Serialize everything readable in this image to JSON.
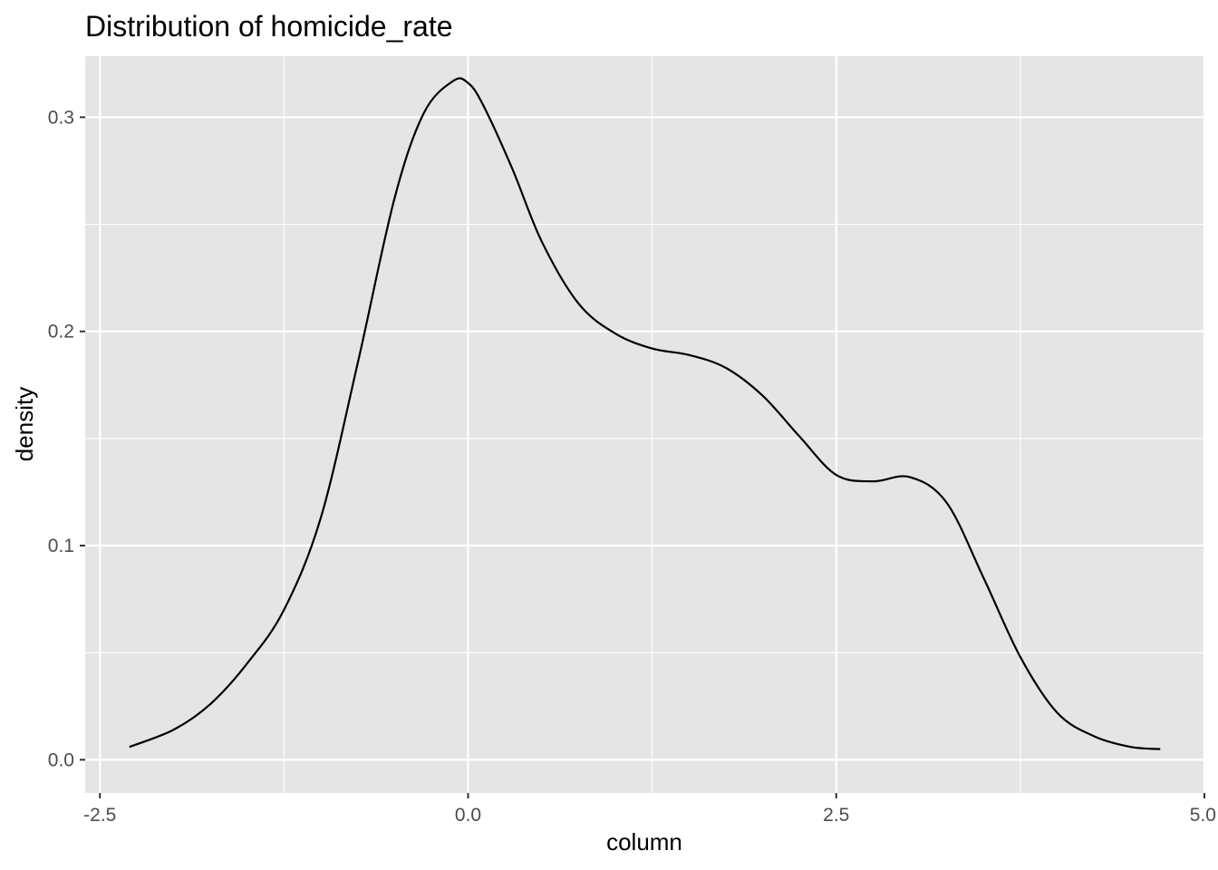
{
  "chart_data": {
    "type": "area",
    "title": "Distribution of homicide_rate",
    "xlabel": "column",
    "ylabel": "density",
    "xlim": [
      -2.6,
      5.0
    ],
    "ylim": [
      -0.0155,
      0.3285
    ],
    "x_ticks": [
      -2.5,
      0.0,
      2.5,
      5.0
    ],
    "x_tick_labels": [
      "-2.5",
      "0.0",
      "2.5",
      "5.0"
    ],
    "y_ticks": [
      0.0,
      0.1,
      0.2,
      0.3
    ],
    "y_tick_labels": [
      "0.0",
      "0.1",
      "0.2",
      "0.3"
    ],
    "grid": true,
    "panel_color": "#e5e5e5",
    "grid_color": "#ffffff",
    "line_color": "#000000",
    "series": [
      {
        "x": [
          -2.3,
          -2.0,
          -1.75,
          -1.5,
          -1.25,
          -1.0,
          -0.75,
          -0.5,
          -0.3,
          -0.1,
          0.0,
          0.1,
          0.3,
          0.5,
          0.75,
          1.0,
          1.25,
          1.5,
          1.75,
          2.0,
          2.25,
          2.5,
          2.75,
          3.0,
          3.25,
          3.5,
          3.75,
          4.0,
          4.25,
          4.5,
          4.7
        ],
        "y": [
          0.006,
          0.014,
          0.026,
          0.045,
          0.07,
          0.113,
          0.185,
          0.262,
          0.302,
          0.317,
          0.316,
          0.306,
          0.276,
          0.242,
          0.213,
          0.199,
          0.192,
          0.189,
          0.183,
          0.17,
          0.151,
          0.133,
          0.13,
          0.132,
          0.12,
          0.085,
          0.048,
          0.022,
          0.011,
          0.006,
          0.005
        ]
      }
    ]
  }
}
